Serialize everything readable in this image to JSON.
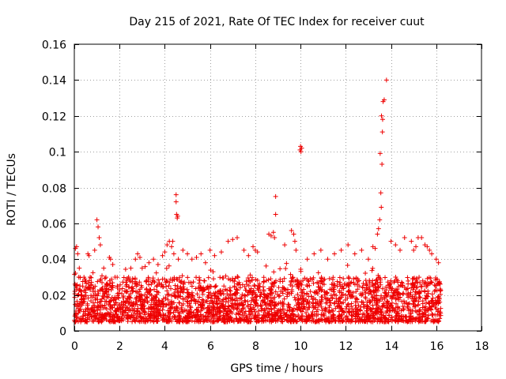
{
  "chart_data": {
    "type": "scatter",
    "title": "Day 215 of 2021, Rate Of TEC Index for receiver cuut",
    "xlabel": "GPS time / hours",
    "ylabel": "ROTI / TECUs",
    "xlim": [
      0,
      18
    ],
    "ylim": [
      0,
      0.16
    ],
    "xticks": [
      0,
      2,
      4,
      6,
      8,
      10,
      12,
      14,
      16,
      18
    ],
    "xtick_labels": [
      "0",
      "2",
      "4",
      "6",
      "8",
      "10",
      "12",
      "14",
      "16",
      "18"
    ],
    "yticks": [
      0,
      0.02,
      0.04,
      0.06,
      0.08,
      0.1,
      0.12,
      0.14,
      0.16
    ],
    "ytick_labels": [
      "0",
      "0.02",
      "0.04",
      "0.06",
      "0.08",
      "0.1",
      "0.12",
      "0.14",
      "0.16"
    ],
    "grid": true,
    "marker": "+",
    "color": "#ee0000",
    "series": [
      {
        "name": "ROTI",
        "x": [
          0.05,
          0.1,
          0.15,
          0.2,
          0.25,
          0.3,
          0.12,
          0.18,
          0.22,
          0.6,
          0.65,
          0.7,
          0.9,
          1.0,
          1.05,
          1.1,
          1.15,
          1.3,
          1.55,
          1.6,
          1.7,
          1.8,
          1.9,
          2.4,
          2.5,
          2.7,
          2.8,
          2.9,
          3.0,
          3.3,
          3.5,
          3.7,
          3.9,
          4.0,
          4.1,
          4.2,
          4.3,
          4.35,
          4.4,
          4.5,
          4.5,
          4.52,
          4.55,
          4.57,
          4.6,
          4.8,
          5.0,
          5.2,
          5.4,
          5.6,
          5.8,
          6.0,
          6.2,
          6.5,
          6.8,
          7.0,
          7.2,
          7.5,
          7.7,
          7.9,
          8.0,
          8.1,
          8.6,
          8.7,
          8.8,
          8.85,
          8.9,
          8.9,
          9.3,
          9.6,
          9.7,
          9.75,
          9.8,
          9.98,
          10.0,
          10.02,
          10.05,
          10.3,
          10.6,
          10.9,
          11.2,
          11.5,
          11.8,
          12.1,
          12.4,
          12.7,
          13.0,
          13.2,
          13.3,
          13.4,
          13.45,
          13.5,
          13.52,
          13.55,
          13.57,
          13.6,
          13.62,
          13.58,
          13.63,
          13.65,
          13.7,
          13.8,
          14.0,
          14.2,
          14.4,
          14.6,
          14.9,
          15.0,
          15.1,
          15.2,
          15.35,
          15.5,
          15.6,
          15.7,
          15.8,
          16.0,
          16.1
        ],
        "y": [
          0.046,
          0.047,
          0.043,
          0.03,
          0.025,
          0.02,
          0.015,
          0.01,
          0.035,
          0.043,
          0.042,
          0.03,
          0.045,
          0.062,
          0.058,
          0.052,
          0.048,
          0.035,
          0.041,
          0.04,
          0.037,
          0.03,
          0.025,
          0.03,
          0.035,
          0.04,
          0.043,
          0.041,
          0.035,
          0.038,
          0.04,
          0.037,
          0.042,
          0.044,
          0.048,
          0.05,
          0.047,
          0.05,
          0.043,
          0.076,
          0.072,
          0.065,
          0.063,
          0.064,
          0.04,
          0.045,
          0.043,
          0.04,
          0.041,
          0.043,
          0.038,
          0.045,
          0.042,
          0.044,
          0.05,
          0.051,
          0.052,
          0.045,
          0.042,
          0.047,
          0.045,
          0.044,
          0.054,
          0.053,
          0.055,
          0.052,
          0.075,
          0.065,
          0.048,
          0.056,
          0.054,
          0.05,
          0.045,
          0.101,
          0.103,
          0.1,
          0.102,
          0.04,
          0.043,
          0.045,
          0.04,
          0.043,
          0.045,
          0.048,
          0.043,
          0.045,
          0.04,
          0.047,
          0.046,
          0.054,
          0.057,
          0.062,
          0.099,
          0.077,
          0.069,
          0.093,
          0.111,
          0.12,
          0.118,
          0.128,
          0.129,
          0.14,
          0.05,
          0.048,
          0.045,
          0.052,
          0.05,
          0.045,
          0.047,
          0.052,
          0.052,
          0.048,
          0.047,
          0.045,
          0.043,
          0.04,
          0.038
        ]
      }
    ],
    "dense_band": {
      "x_range": [
        0,
        16.2
      ],
      "y_typical": [
        0.005,
        0.03
      ]
    }
  }
}
